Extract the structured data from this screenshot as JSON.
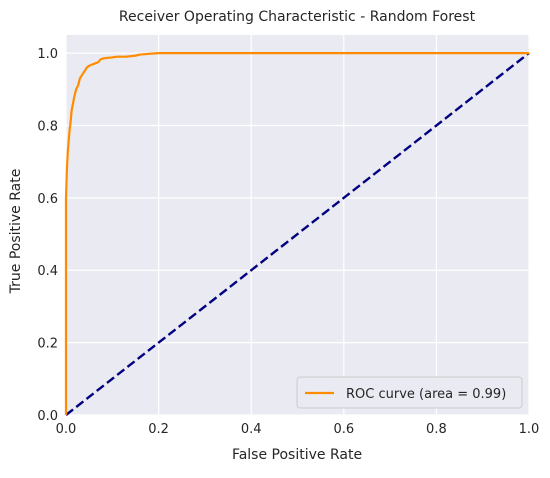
{
  "chart_data": {
    "type": "line",
    "title": "Receiver Operating Characteristic - Random Forest",
    "xlabel": "False Positive Rate",
    "ylabel": "True Positive Rate",
    "xlim": [
      0.0,
      1.0
    ],
    "ylim": [
      0.0,
      1.05
    ],
    "x_ticks": [
      "0.0",
      "0.2",
      "0.4",
      "0.6",
      "0.8",
      "1.0"
    ],
    "y_ticks": [
      "0.0",
      "0.2",
      "0.4",
      "0.6",
      "0.8",
      "1.0"
    ],
    "grid": true,
    "legend_position": "bottom-right",
    "series": [
      {
        "name": "ROC curve (area = 0.99)",
        "color": "#ff8c00",
        "style": "solid",
        "x": [
          0.0,
          0.0,
          0.002,
          0.004,
          0.006,
          0.008,
          0.01,
          0.012,
          0.015,
          0.018,
          0.022,
          0.026,
          0.03,
          0.035,
          0.04,
          0.045,
          0.05,
          0.06,
          0.07,
          0.075,
          0.08,
          0.09,
          0.1,
          0.11,
          0.13,
          0.15,
          0.16,
          0.18,
          0.2,
          0.25,
          0.4,
          0.6,
          0.8,
          1.0
        ],
        "y": [
          0.0,
          0.6,
          0.68,
          0.73,
          0.76,
          0.79,
          0.81,
          0.84,
          0.86,
          0.88,
          0.9,
          0.91,
          0.93,
          0.94,
          0.95,
          0.96,
          0.965,
          0.97,
          0.975,
          0.983,
          0.985,
          0.987,
          0.988,
          0.99,
          0.99,
          0.993,
          0.996,
          0.998,
          1.0,
          1.0,
          1.0,
          1.0,
          1.0,
          1.0
        ]
      },
      {
        "name": "",
        "color": "#000080",
        "style": "dashed",
        "x": [
          0.0,
          1.0
        ],
        "y": [
          0.0,
          1.0
        ]
      }
    ],
    "legend": [
      {
        "label": "ROC curve (area = 0.99)",
        "color": "#ff8c00"
      }
    ],
    "colors": {
      "plot_background": "#eaeaf2",
      "grid": "#ffffff",
      "text": "#262626"
    }
  }
}
